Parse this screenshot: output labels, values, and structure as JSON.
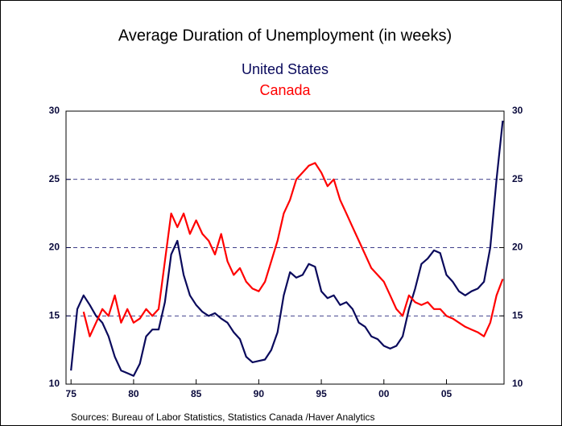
{
  "chart_data": {
    "type": "line",
    "title": "Average Duration of Unemployment (in weeks)",
    "source": "Sources:  Bureau of Labor Statistics, Statistics Canada /Haver Analytics",
    "x": [
      1975,
      1975.5,
      1976,
      1976.5,
      1977,
      1977.5,
      1978,
      1978.5,
      1979,
      1979.5,
      1980,
      1980.5,
      1981,
      1981.5,
      1982,
      1982.5,
      1983,
      1983.5,
      1984,
      1984.5,
      1985,
      1985.5,
      1986,
      1986.5,
      1987,
      1987.5,
      1988,
      1988.5,
      1989,
      1989.5,
      1990,
      1990.5,
      1991,
      1991.5,
      1992,
      1992.5,
      1993,
      1993.5,
      1994,
      1994.5,
      1995,
      1995.5,
      1996,
      1996.5,
      1997,
      1997.5,
      1998,
      1998.5,
      1999,
      1999.5,
      2000,
      2000.5,
      2001,
      2001.5,
      2002,
      2002.5,
      2003,
      2003.5,
      2004,
      2004.5,
      2005,
      2005.5,
      2006,
      2006.5,
      2007,
      2007.5,
      2008,
      2008.5,
      2009,
      2009.5
    ],
    "series": [
      {
        "name": "United States",
        "color": "#0a0a5c",
        "values": [
          11,
          15.5,
          16.5,
          15.8,
          15,
          14.5,
          13.5,
          12,
          11,
          10.8,
          10.6,
          11.5,
          13.5,
          14,
          14,
          16,
          19.5,
          20.5,
          18,
          16.5,
          15.8,
          15.3,
          15,
          15.2,
          14.8,
          14.5,
          13.8,
          13.3,
          12,
          11.6,
          11.7,
          11.8,
          12.5,
          13.8,
          16.5,
          18.2,
          17.8,
          18,
          18.8,
          18.6,
          16.8,
          16.3,
          16.5,
          15.8,
          16,
          15.5,
          14.5,
          14.2,
          13.5,
          13.3,
          12.8,
          12.6,
          12.8,
          13.5,
          15.5,
          17,
          18.8,
          19.2,
          19.8,
          19.6,
          18,
          17.5,
          16.8,
          16.5,
          16.8,
          17,
          17.5,
          20,
          25,
          29.3
        ]
      },
      {
        "name": "Canada",
        "color": "#ff0000",
        "values": [
          null,
          null,
          15.3,
          13.5,
          14.5,
          15.5,
          15,
          16.5,
          14.5,
          15.5,
          14.5,
          14.8,
          15.5,
          15,
          15.5,
          19,
          22.5,
          21.5,
          22.5,
          21,
          22,
          21,
          20.5,
          19.5,
          21,
          19,
          18,
          18.5,
          17.5,
          17,
          16.8,
          17.5,
          19,
          20.5,
          22.5,
          23.5,
          25,
          25.5,
          26,
          26.2,
          25.5,
          24.5,
          25,
          23.5,
          22.5,
          21.5,
          20.5,
          19.5,
          18.5,
          18,
          17.5,
          16.5,
          15.5,
          15,
          16.5,
          16,
          15.8,
          16,
          15.5,
          15.5,
          15,
          14.8,
          14.5,
          14.2,
          14,
          13.8,
          13.5,
          14.5,
          16.5,
          17.7
        ]
      }
    ],
    "xlim": [
      1974.6,
      2009.6
    ],
    "xticks": [
      {
        "value": 1975,
        "label": "75"
      },
      {
        "value": 1980,
        "label": "80"
      },
      {
        "value": 1985,
        "label": "85"
      },
      {
        "value": 1990,
        "label": "90"
      },
      {
        "value": 1995,
        "label": "95"
      },
      {
        "value": 2000,
        "label": "00"
      },
      {
        "value": 2005,
        "label": "05"
      }
    ],
    "ylim": [
      10,
      30
    ],
    "yticks": [
      10,
      15,
      20,
      25,
      30
    ],
    "y2lim": [
      10,
      30
    ],
    "y2ticks": [
      10,
      15,
      20,
      25,
      30
    ],
    "grid": true
  }
}
